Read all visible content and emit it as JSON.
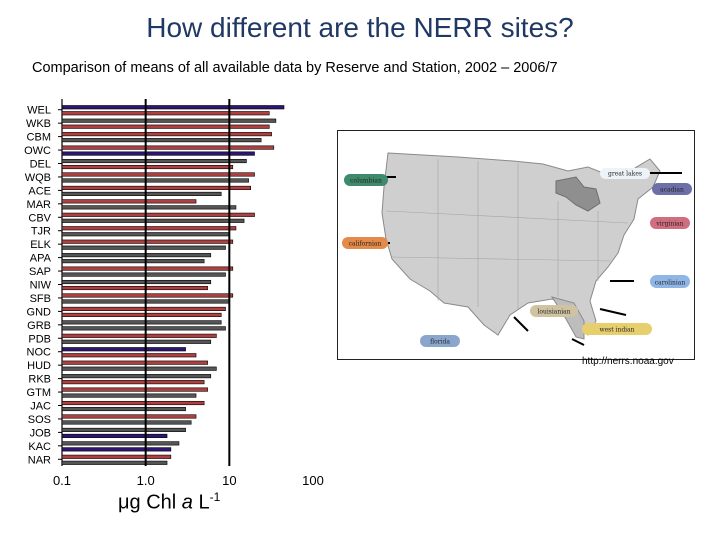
{
  "page": {
    "title": "How different are the NERR sites?",
    "subtitle": "Comparison of means of all available data by Reserve and Station, 2002 – 2006/7",
    "map_credit": "http://nerrs.noaa.gov"
  },
  "x_axis_title": {
    "unit_prefix": "μg Chl ",
    "unit_italic": "a",
    "unit_suffix": " L",
    "exponent": "-1"
  },
  "chart_data": {
    "type": "bar",
    "orientation": "horizontal",
    "title": "",
    "xlabel": "μg Chl a L-1",
    "xscale": "log",
    "xlim": [
      0.1,
      100
    ],
    "x_ticks": [
      0.1,
      1.0,
      10,
      100
    ],
    "x_tick_labels": [
      "0.1",
      "1.0",
      "10",
      "100"
    ],
    "reference_lines": [
      1,
      10
    ],
    "categories": [
      "WEL",
      "WKB",
      "CBM",
      "OWC",
      "DEL",
      "WQB",
      "ACE",
      "MAR",
      "CBV",
      "TJR",
      "ELK",
      "APA",
      "SAP",
      "NIW",
      "SFB",
      "GND",
      "GRB",
      "PDB",
      "NOC",
      "HUD",
      "RKB",
      "GTM",
      "JAC",
      "SOS",
      "JOB",
      "KAC",
      "NAR"
    ],
    "bar_color_palette": [
      "#2d1673",
      "#b04040",
      "#555555"
    ],
    "groups": [
      {
        "name": "WEL",
        "bars": [
          {
            "value": 45,
            "color": 0
          },
          {
            "value": 30,
            "color": 1
          }
        ]
      },
      {
        "name": "WKB",
        "bars": [
          {
            "value": 36,
            "color": 2
          },
          {
            "value": 30,
            "color": 1
          }
        ]
      },
      {
        "name": "CBM",
        "bars": [
          {
            "value": 32,
            "color": 1
          },
          {
            "value": 24,
            "color": 2
          }
        ]
      },
      {
        "name": "OWC",
        "bars": [
          {
            "value": 34,
            "color": 1
          },
          {
            "value": 20,
            "color": 0
          }
        ]
      },
      {
        "name": "DEL",
        "bars": [
          {
            "value": 16,
            "color": 2
          },
          {
            "value": 11,
            "color": 1
          }
        ]
      },
      {
        "name": "WQB",
        "bars": [
          {
            "value": 20,
            "color": 1
          },
          {
            "value": 17,
            "color": 2
          }
        ]
      },
      {
        "name": "ACE",
        "bars": [
          {
            "value": 18,
            "color": 1
          },
          {
            "value": 8,
            "color": 2
          }
        ]
      },
      {
        "name": "MAR",
        "bars": [
          {
            "value": 4,
            "color": 1
          },
          {
            "value": 12,
            "color": 2
          }
        ]
      },
      {
        "name": "CBV",
        "bars": [
          {
            "value": 20,
            "color": 1
          },
          {
            "value": 15,
            "color": 2
          }
        ]
      },
      {
        "name": "TJR",
        "bars": [
          {
            "value": 12,
            "color": 1
          },
          {
            "value": 10,
            "color": 2
          }
        ]
      },
      {
        "name": "ELK",
        "bars": [
          {
            "value": 11,
            "color": 1
          },
          {
            "value": 9,
            "color": 2
          }
        ]
      },
      {
        "name": "APA",
        "bars": [
          {
            "value": 6,
            "color": 2
          },
          {
            "value": 5,
            "color": 2
          }
        ]
      },
      {
        "name": "SAP",
        "bars": [
          {
            "value": 11,
            "color": 1
          },
          {
            "value": 9,
            "color": 2
          }
        ]
      },
      {
        "name": "NIW",
        "bars": [
          {
            "value": 6,
            "color": 2
          },
          {
            "value": 5.5,
            "color": 1
          }
        ]
      },
      {
        "name": "SFB",
        "bars": [
          {
            "value": 11,
            "color": 1
          },
          {
            "value": 10,
            "color": 2
          }
        ]
      },
      {
        "name": "GND",
        "bars": [
          {
            "value": 9,
            "color": 1
          },
          {
            "value": 8,
            "color": 1
          }
        ]
      },
      {
        "name": "GRB",
        "bars": [
          {
            "value": 8,
            "color": 2
          },
          {
            "value": 9,
            "color": 2
          }
        ]
      },
      {
        "name": "PDB",
        "bars": [
          {
            "value": 7,
            "color": 1
          },
          {
            "value": 6,
            "color": 2
          }
        ]
      },
      {
        "name": "NOC",
        "bars": [
          {
            "value": 3,
            "color": 0
          },
          {
            "value": 4,
            "color": 1
          }
        ]
      },
      {
        "name": "HUD",
        "bars": [
          {
            "value": 5.5,
            "color": 1
          },
          {
            "value": 7,
            "color": 2
          }
        ]
      },
      {
        "name": "RKB",
        "bars": [
          {
            "value": 6,
            "color": 2
          },
          {
            "value": 5,
            "color": 1
          }
        ]
      },
      {
        "name": "GTM",
        "bars": [
          {
            "value": 5.5,
            "color": 1
          },
          {
            "value": 4,
            "color": 2
          }
        ]
      },
      {
        "name": "JAC",
        "bars": [
          {
            "value": 5,
            "color": 1
          },
          {
            "value": 3,
            "color": 2
          }
        ]
      },
      {
        "name": "SOS",
        "bars": [
          {
            "value": 4,
            "color": 1
          },
          {
            "value": 3.5,
            "color": 2
          }
        ]
      },
      {
        "name": "JOB",
        "bars": [
          {
            "value": 3,
            "color": 2
          },
          {
            "value": 1.8,
            "color": 0
          }
        ]
      },
      {
        "name": "KAC",
        "bars": [
          {
            "value": 2.5,
            "color": 2
          },
          {
            "value": 2,
            "color": 0
          }
        ]
      },
      {
        "name": "NAR",
        "bars": [
          {
            "value": 2,
            "color": 1
          },
          {
            "value": 1.8,
            "color": 2
          }
        ]
      }
    ]
  },
  "map": {
    "region_labels": [
      {
        "text": "columbian",
        "color": "#3d8a6c"
      },
      {
        "text": "great lakes",
        "color": "#eef3f7"
      },
      {
        "text": "acadian",
        "color": "#6d6fa8"
      },
      {
        "text": "virginian",
        "color": "#d06d7e"
      },
      {
        "text": "californian",
        "color": "#e48a4a"
      },
      {
        "text": "carolinian",
        "color": "#8fb6e6"
      },
      {
        "text": "louisianian",
        "color": "#cfc3a2"
      },
      {
        "text": "west indian",
        "color": "#e7cf6e"
      },
      {
        "text": "florida",
        "color": "#8aa6cc"
      }
    ]
  }
}
